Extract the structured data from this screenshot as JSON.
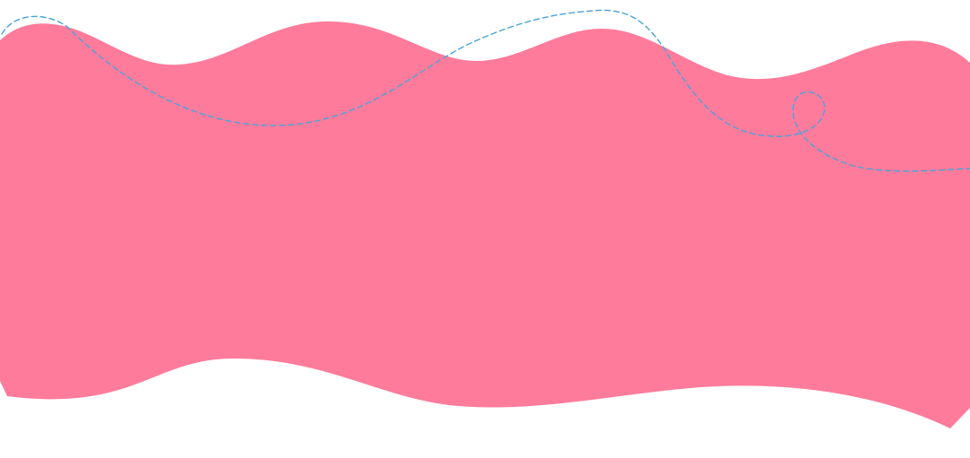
{
  "colors": {
    "background": "#ffffff",
    "wave_fill": "#ff7b9c",
    "dashed_line": "#4aa3d8"
  },
  "shapes": [
    {
      "name": "pink-wave-banner",
      "kind": "filled wavy band"
    },
    {
      "name": "dashed-loop-path",
      "kind": "dashed curve with a small loop"
    }
  ]
}
